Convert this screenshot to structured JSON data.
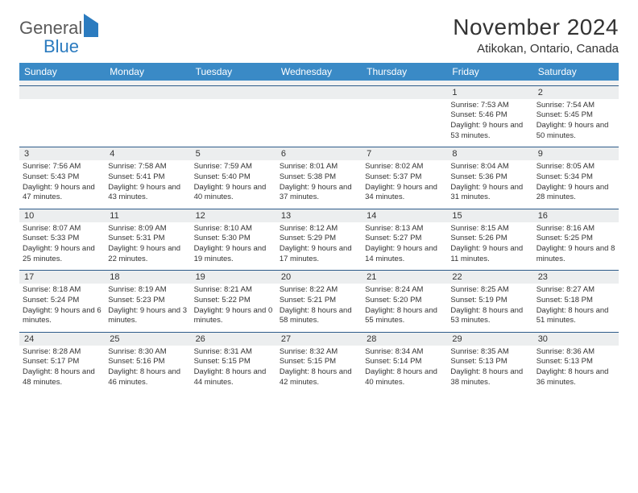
{
  "logo": {
    "part1": "General",
    "part2": "Blue"
  },
  "title": "November 2024",
  "location": "Atikokan, Ontario, Canada",
  "dayHeaders": [
    "Sunday",
    "Monday",
    "Tuesday",
    "Wednesday",
    "Thursday",
    "Friday",
    "Saturday"
  ],
  "colors": {
    "headerBg": "#3a8ac6",
    "headerText": "#ffffff",
    "dayNumBg": "#eceeef",
    "weekTopBorder": "#2e5c8a",
    "bodyText": "#333333",
    "logoGray": "#5a5a5a",
    "logoBlue": "#2b7bbf",
    "pageBg": "#ffffff"
  },
  "weeks": [
    [
      null,
      null,
      null,
      null,
      null,
      {
        "n": "1",
        "sr": "7:53 AM",
        "ss": "5:46 PM",
        "dh": "9",
        "dm": "53"
      },
      {
        "n": "2",
        "sr": "7:54 AM",
        "ss": "5:45 PM",
        "dh": "9",
        "dm": "50"
      }
    ],
    [
      {
        "n": "3",
        "sr": "7:56 AM",
        "ss": "5:43 PM",
        "dh": "9",
        "dm": "47"
      },
      {
        "n": "4",
        "sr": "7:58 AM",
        "ss": "5:41 PM",
        "dh": "9",
        "dm": "43"
      },
      {
        "n": "5",
        "sr": "7:59 AM",
        "ss": "5:40 PM",
        "dh": "9",
        "dm": "40"
      },
      {
        "n": "6",
        "sr": "8:01 AM",
        "ss": "5:38 PM",
        "dh": "9",
        "dm": "37"
      },
      {
        "n": "7",
        "sr": "8:02 AM",
        "ss": "5:37 PM",
        "dh": "9",
        "dm": "34"
      },
      {
        "n": "8",
        "sr": "8:04 AM",
        "ss": "5:36 PM",
        "dh": "9",
        "dm": "31"
      },
      {
        "n": "9",
        "sr": "8:05 AM",
        "ss": "5:34 PM",
        "dh": "9",
        "dm": "28"
      }
    ],
    [
      {
        "n": "10",
        "sr": "8:07 AM",
        "ss": "5:33 PM",
        "dh": "9",
        "dm": "25"
      },
      {
        "n": "11",
        "sr": "8:09 AM",
        "ss": "5:31 PM",
        "dh": "9",
        "dm": "22"
      },
      {
        "n": "12",
        "sr": "8:10 AM",
        "ss": "5:30 PM",
        "dh": "9",
        "dm": "19"
      },
      {
        "n": "13",
        "sr": "8:12 AM",
        "ss": "5:29 PM",
        "dh": "9",
        "dm": "17"
      },
      {
        "n": "14",
        "sr": "8:13 AM",
        "ss": "5:27 PM",
        "dh": "9",
        "dm": "14"
      },
      {
        "n": "15",
        "sr": "8:15 AM",
        "ss": "5:26 PM",
        "dh": "9",
        "dm": "11"
      },
      {
        "n": "16",
        "sr": "8:16 AM",
        "ss": "5:25 PM",
        "dh": "9",
        "dm": "8"
      }
    ],
    [
      {
        "n": "17",
        "sr": "8:18 AM",
        "ss": "5:24 PM",
        "dh": "9",
        "dm": "6"
      },
      {
        "n": "18",
        "sr": "8:19 AM",
        "ss": "5:23 PM",
        "dh": "9",
        "dm": "3"
      },
      {
        "n": "19",
        "sr": "8:21 AM",
        "ss": "5:22 PM",
        "dh": "9",
        "dm": "0"
      },
      {
        "n": "20",
        "sr": "8:22 AM",
        "ss": "5:21 PM",
        "dh": "8",
        "dm": "58"
      },
      {
        "n": "21",
        "sr": "8:24 AM",
        "ss": "5:20 PM",
        "dh": "8",
        "dm": "55"
      },
      {
        "n": "22",
        "sr": "8:25 AM",
        "ss": "5:19 PM",
        "dh": "8",
        "dm": "53"
      },
      {
        "n": "23",
        "sr": "8:27 AM",
        "ss": "5:18 PM",
        "dh": "8",
        "dm": "51"
      }
    ],
    [
      {
        "n": "24",
        "sr": "8:28 AM",
        "ss": "5:17 PM",
        "dh": "8",
        "dm": "48"
      },
      {
        "n": "25",
        "sr": "8:30 AM",
        "ss": "5:16 PM",
        "dh": "8",
        "dm": "46"
      },
      {
        "n": "26",
        "sr": "8:31 AM",
        "ss": "5:15 PM",
        "dh": "8",
        "dm": "44"
      },
      {
        "n": "27",
        "sr": "8:32 AM",
        "ss": "5:15 PM",
        "dh": "8",
        "dm": "42"
      },
      {
        "n": "28",
        "sr": "8:34 AM",
        "ss": "5:14 PM",
        "dh": "8",
        "dm": "40"
      },
      {
        "n": "29",
        "sr": "8:35 AM",
        "ss": "5:13 PM",
        "dh": "8",
        "dm": "38"
      },
      {
        "n": "30",
        "sr": "8:36 AM",
        "ss": "5:13 PM",
        "dh": "8",
        "dm": "36"
      }
    ]
  ]
}
